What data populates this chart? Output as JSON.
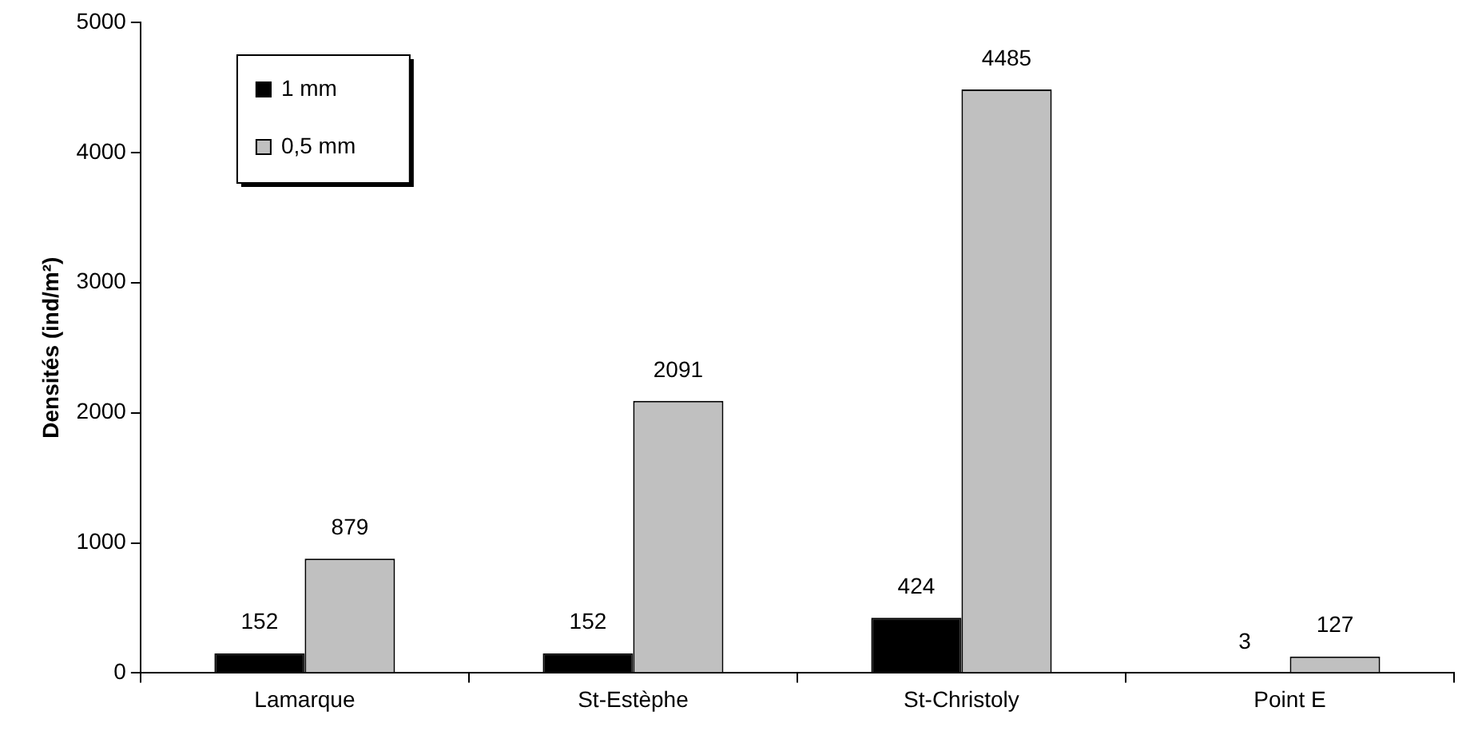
{
  "chart_data": {
    "type": "bar",
    "ylabel": "Densités (ind/m²)",
    "categories": [
      "Lamarque",
      "St-Estèphe",
      "St-Christoly",
      "Point E"
    ],
    "series": [
      {
        "name": "1 mm",
        "color": "#000000",
        "values": [
          152,
          152,
          424,
          3
        ]
      },
      {
        "name": "0,5 mm",
        "color": "#c0c0c0",
        "values": [
          879,
          2091,
          4485,
          127
        ]
      }
    ],
    "ylim": [
      0,
      5000
    ],
    "yticks": [
      0,
      1000,
      2000,
      3000,
      4000,
      5000
    ],
    "grid": false,
    "legend": "top left",
    "data_labels": true
  }
}
